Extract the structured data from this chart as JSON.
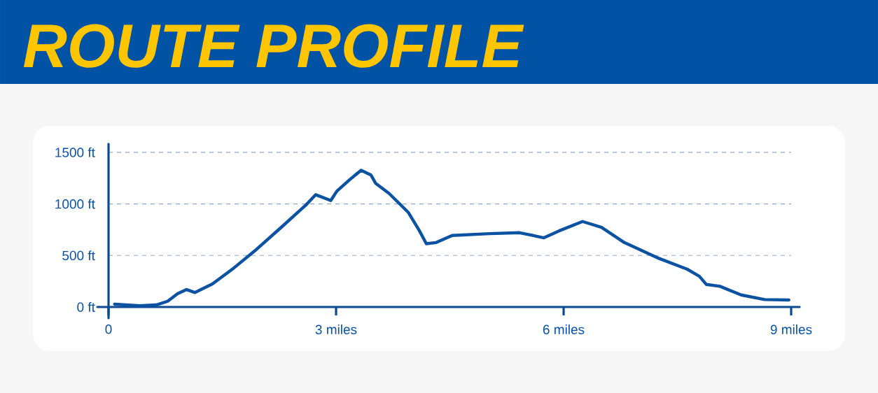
{
  "chart_data": {
    "type": "line",
    "title": "ROUTE PROFILE",
    "x": [
      0.08,
      0.41,
      0.63,
      0.78,
      0.91,
      1.03,
      1.14,
      1.37,
      1.65,
      1.95,
      2.26,
      2.6,
      2.73,
      2.93,
      3.01,
      3.18,
      3.33,
      3.46,
      3.52,
      3.7,
      3.95,
      4.1,
      4.19,
      4.32,
      4.53,
      5.02,
      5.42,
      5.74,
      5.94,
      6.25,
      6.5,
      6.8,
      7.23,
      7.63,
      7.79,
      7.88,
      8.06,
      8.34,
      8.65,
      8.97
    ],
    "values": [
      27,
      12,
      20,
      56,
      129,
      169,
      140,
      224,
      377,
      558,
      761,
      987,
      1089,
      1032,
      1123,
      1235,
      1326,
      1280,
      1201,
      1100,
      919,
      738,
      614,
      625,
      693,
      711,
      720,
      671,
      738,
      829,
      772,
      625,
      479,
      366,
      298,
      219,
      201,
      117,
      72,
      68
    ],
    "color": "#0b52a3",
    "xlim": [
      0,
      9
    ],
    "ylim": [
      0,
      1500
    ],
    "xticks": [
      0,
      {
        "value": 3,
        "label": "3 miles"
      },
      {
        "value": 6,
        "label": "6 miles"
      },
      {
        "value": 9,
        "label": "9 miles"
      }
    ],
    "yticks": [
      {
        "value": 0,
        "label": "0 ft"
      },
      {
        "value": 500,
        "label": "500 ft"
      },
      {
        "value": 1000,
        "label": "1000 ft"
      },
      {
        "value": 1500,
        "label": "1500 ft"
      }
    ],
    "grid": "y"
  }
}
